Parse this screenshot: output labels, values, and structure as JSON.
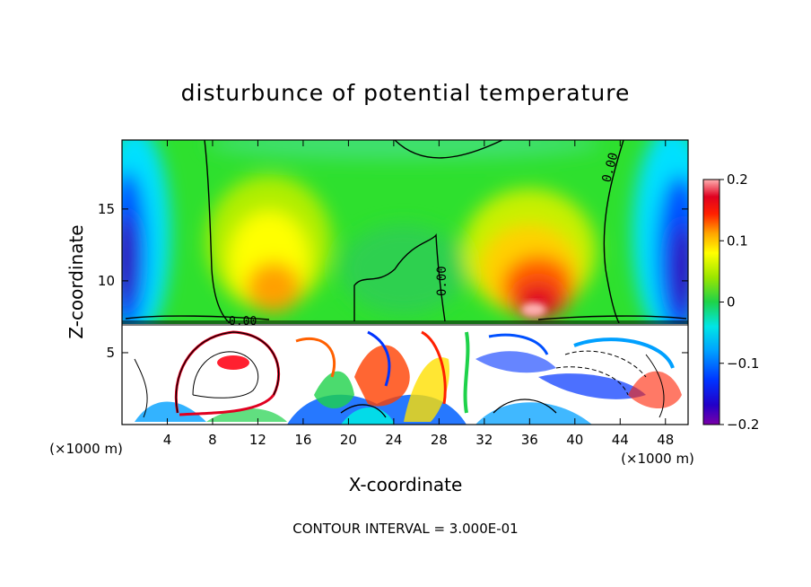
{
  "chart_data": {
    "type": "heatmap",
    "title": "disturbunce of potential temperature",
    "xlabel": "X-coordinate",
    "ylabel": "Z-coordinate",
    "x_unit_left": "(×1000 m)",
    "x_unit_right": "(×1000 m)",
    "x_range": [
      0,
      50
    ],
    "y_range": [
      0,
      19.8
    ],
    "x_ticks": [
      4,
      8,
      12,
      16,
      20,
      24,
      28,
      32,
      36,
      40,
      44,
      48
    ],
    "y_ticks": [
      5,
      10,
      15
    ],
    "colorbar": {
      "range": [
        -0.2,
        0.2
      ],
      "tick_values": [
        0.2,
        0.1,
        0,
        -0.1,
        -0.2
      ],
      "tick_labels": [
        "0.2",
        "0.1",
        "0",
        "−0.1",
        "−0.2"
      ]
    },
    "contour_labels": [
      "0.00",
      "0.00",
      "0.00"
    ],
    "footer": "CONTOUR INTERVAL = 3.000E-01",
    "inversion_height": 7.2,
    "warm_anomalies": [
      {
        "x": 17,
        "z": 12,
        "value": 0.09
      },
      {
        "x": 37,
        "z": 10,
        "value": 0.16
      },
      {
        "x": 9.5,
        "z": 4.3,
        "value": 0.2
      }
    ],
    "cold_anomalies": [
      {
        "x": 1,
        "z": 13,
        "value": -0.19
      },
      {
        "x": 49,
        "z": 11,
        "value": -0.19
      }
    ]
  }
}
